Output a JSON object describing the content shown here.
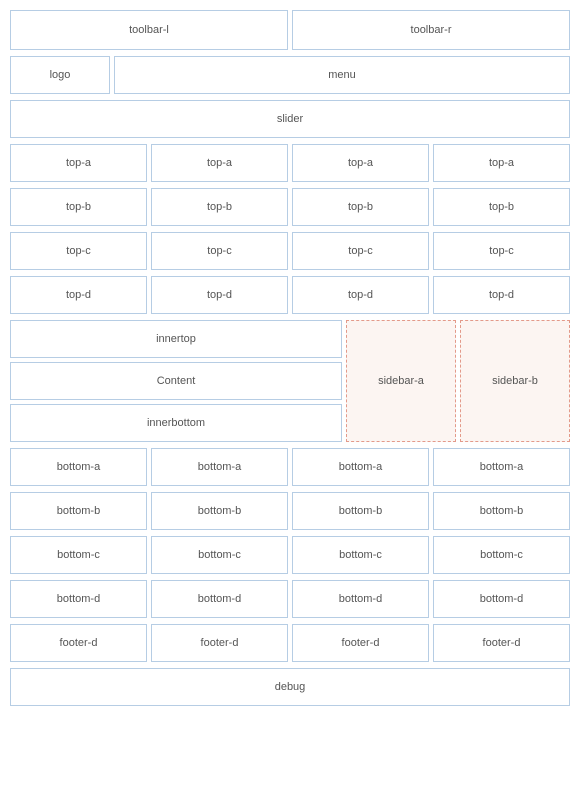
{
  "layout": {
    "border_color": "#b6cde4",
    "sidebar_border_color": "#e39a8a",
    "sidebar_bg": "#fcf5f2",
    "background_color": "#ffffff",
    "text_color": "#555555",
    "font_size": 11,
    "gap_row": 6,
    "gap_cell": 4
  },
  "toolbar": {
    "left": "toolbar-l",
    "right": "toolbar-r"
  },
  "header": {
    "logo": "logo",
    "menu": "menu"
  },
  "slider": "slider",
  "top_rows": [
    {
      "name": "top-a",
      "cells": [
        "top-a",
        "top-a",
        "top-a",
        "top-a"
      ]
    },
    {
      "name": "top-b",
      "cells": [
        "top-b",
        "top-b",
        "top-b",
        "top-b"
      ]
    },
    {
      "name": "top-c",
      "cells": [
        "top-c",
        "top-c",
        "top-c",
        "top-c"
      ]
    },
    {
      "name": "top-d",
      "cells": [
        "top-d",
        "top-d",
        "top-d",
        "top-d"
      ]
    }
  ],
  "content": {
    "innertop": "innertop",
    "main": "Content",
    "innerbottom": "innerbottom",
    "sidebar_a": "sidebar-a",
    "sidebar_b": "sidebar-b"
  },
  "bottom_rows": [
    {
      "name": "bottom-a",
      "cells": [
        "bottom-a",
        "bottom-a",
        "bottom-a",
        "bottom-a"
      ]
    },
    {
      "name": "bottom-b",
      "cells": [
        "bottom-b",
        "bottom-b",
        "bottom-b",
        "bottom-b"
      ]
    },
    {
      "name": "bottom-c",
      "cells": [
        "bottom-c",
        "bottom-c",
        "bottom-c",
        "bottom-c"
      ]
    },
    {
      "name": "bottom-d",
      "cells": [
        "bottom-d",
        "bottom-d",
        "bottom-d",
        "bottom-d"
      ]
    },
    {
      "name": "footer-d",
      "cells": [
        "footer-d",
        "footer-d",
        "footer-d",
        "footer-d"
      ]
    }
  ],
  "debug": "debug"
}
